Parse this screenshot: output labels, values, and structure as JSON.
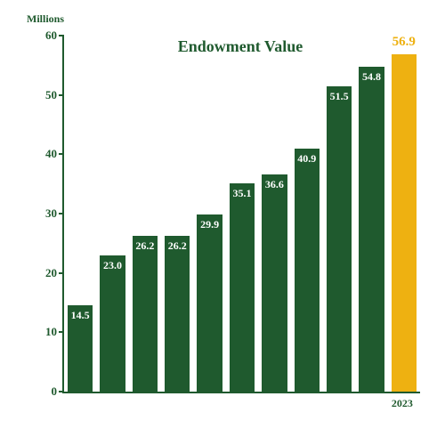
{
  "chart": {
    "type": "bar",
    "title": "Endowment Value",
    "y_unit": "Millions",
    "ylim": [
      0,
      60
    ],
    "ytick_step": 10,
    "title_fontsize": 18,
    "label_fontsize": 13,
    "bar_label_fontsize": 12,
    "highlight_label_fontsize": 15,
    "bar_width_ratio": 0.78,
    "colors": {
      "axis": "#1f5a2e",
      "text": "#1f5a2e",
      "bar": "#1f5a2e",
      "bar_highlight": "#eeb111",
      "bar_label": "#ffffff",
      "background": "#ffffff"
    },
    "bars": [
      {
        "year": "",
        "value": 14.5,
        "label": "14.5",
        "highlight": false
      },
      {
        "year": "",
        "value": 23.0,
        "label": "23.0",
        "highlight": false
      },
      {
        "year": "",
        "value": 26.2,
        "label": "26.2",
        "highlight": false
      },
      {
        "year": "",
        "value": 26.2,
        "label": "26.2",
        "highlight": false
      },
      {
        "year": "",
        "value": 29.9,
        "label": "29.9",
        "highlight": false
      },
      {
        "year": "",
        "value": 35.1,
        "label": "35.1",
        "highlight": false
      },
      {
        "year": "",
        "value": 36.6,
        "label": "36.6",
        "highlight": false
      },
      {
        "year": "",
        "value": 40.9,
        "label": "40.9",
        "highlight": false
      },
      {
        "year": "",
        "value": 51.5,
        "label": "51.5",
        "highlight": false
      },
      {
        "year": "",
        "value": 54.8,
        "label": "54.8",
        "highlight": false
      },
      {
        "year": "2023",
        "value": 56.9,
        "label": "56.9",
        "highlight": true
      }
    ]
  }
}
